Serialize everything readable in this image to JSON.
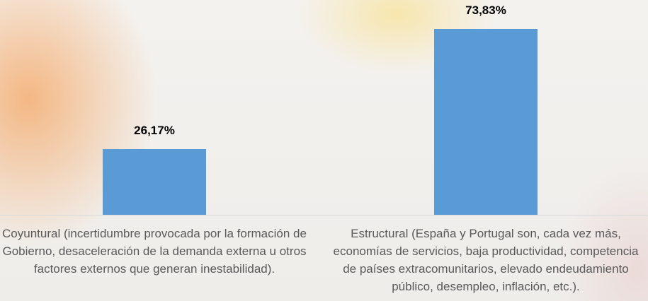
{
  "chart_data": {
    "type": "bar",
    "categories": [
      "Coyuntural (incertidumbre provocada por la formación de Gobierno, desaceleración de la demanda externa u otros factores externos que generan inestabilidad).",
      "Estructural (España y Portugal son, cada vez más, economías de servicios, baja productividad, competencia de países extracomunitarios, elevado endeudamiento público, desempleo, inflación, etc.)."
    ],
    "values": [
      26.17,
      73.83
    ],
    "value_labels": [
      "26,17%",
      "73,83%"
    ],
    "color": "#5b9bd5"
  }
}
